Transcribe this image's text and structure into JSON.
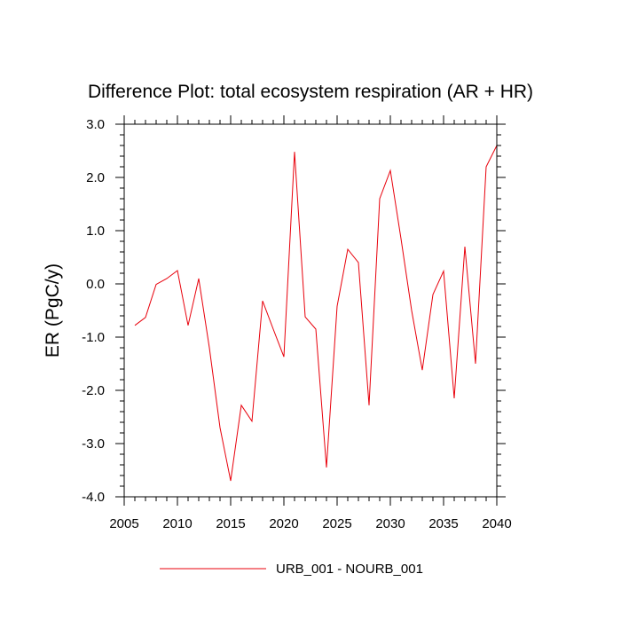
{
  "chart_data": {
    "type": "line",
    "title": "Difference Plot: total ecosystem respiration (AR + HR)",
    "xlabel": "",
    "ylabel": "ER  (PgC/y)",
    "xlim": [
      2005,
      2040
    ],
    "ylim": [
      -4.0,
      3.0
    ],
    "x_ticks": [
      2005,
      2010,
      2015,
      2020,
      2025,
      2030,
      2035,
      2040
    ],
    "x_tick_labels": [
      "2005",
      "2010",
      "2015",
      "2020",
      "2025",
      "2030",
      "2035",
      "2040"
    ],
    "y_ticks": [
      -4.0,
      -3.0,
      -2.0,
      -1.0,
      0.0,
      1.0,
      2.0,
      3.0
    ],
    "y_tick_labels": [
      "-4.0",
      "-3.0",
      "-2.0",
      "-1.0",
      "0.0",
      "1.0",
      "2.0",
      "3.0"
    ],
    "grid": false,
    "legend_position": "bottom-center",
    "series": [
      {
        "name": "URB_001 - NOURB_001",
        "color": "#e8000b",
        "x": [
          2006,
          2007,
          2008,
          2009,
          2010,
          2011,
          2012,
          2013,
          2014,
          2015,
          2016,
          2017,
          2018,
          2019,
          2020,
          2021,
          2022,
          2023,
          2024,
          2025,
          2026,
          2027,
          2028,
          2029,
          2030,
          2031,
          2032,
          2033,
          2034,
          2035,
          2036,
          2037,
          2038,
          2039,
          2040
        ],
        "values": [
          -0.78,
          -0.63,
          -0.01,
          0.1,
          0.25,
          -0.78,
          0.1,
          -1.2,
          -2.7,
          -3.7,
          -2.28,
          -2.58,
          -0.32,
          -0.85,
          -1.37,
          2.48,
          -0.62,
          -0.85,
          -3.45,
          -0.42,
          0.65,
          0.4,
          -2.28,
          1.6,
          2.13,
          0.85,
          -0.5,
          -1.62,
          -0.2,
          0.24,
          -2.15,
          0.7,
          -1.5,
          2.2,
          2.6
        ]
      }
    ]
  }
}
